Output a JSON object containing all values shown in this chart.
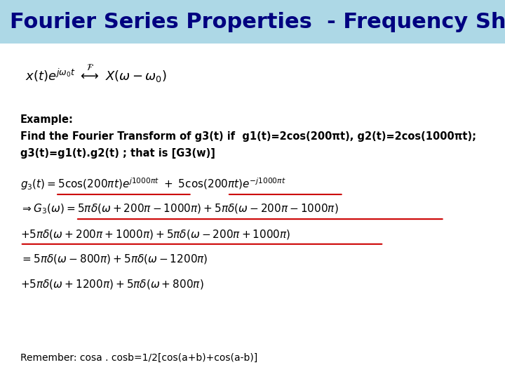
{
  "title": "Fourier Series Properties  - Frequency Shifting",
  "title_bg_color": "#add8e6",
  "body_bg_color": "#ffffff",
  "title_fontsize": 22,
  "title_color": "#000080",
  "example_text_bold": "Example:\nFind the Fourier Transform of g3(t) if  g1(t)=2cos(200πt), g2(t)=2cos(1000πt);\ng3(t)=g1(t).g2(t) ; that is [G3(w)]",
  "remember_text": "Remember: cosa . cosb=1/2[cos(a+b)+cos(a-b)]"
}
